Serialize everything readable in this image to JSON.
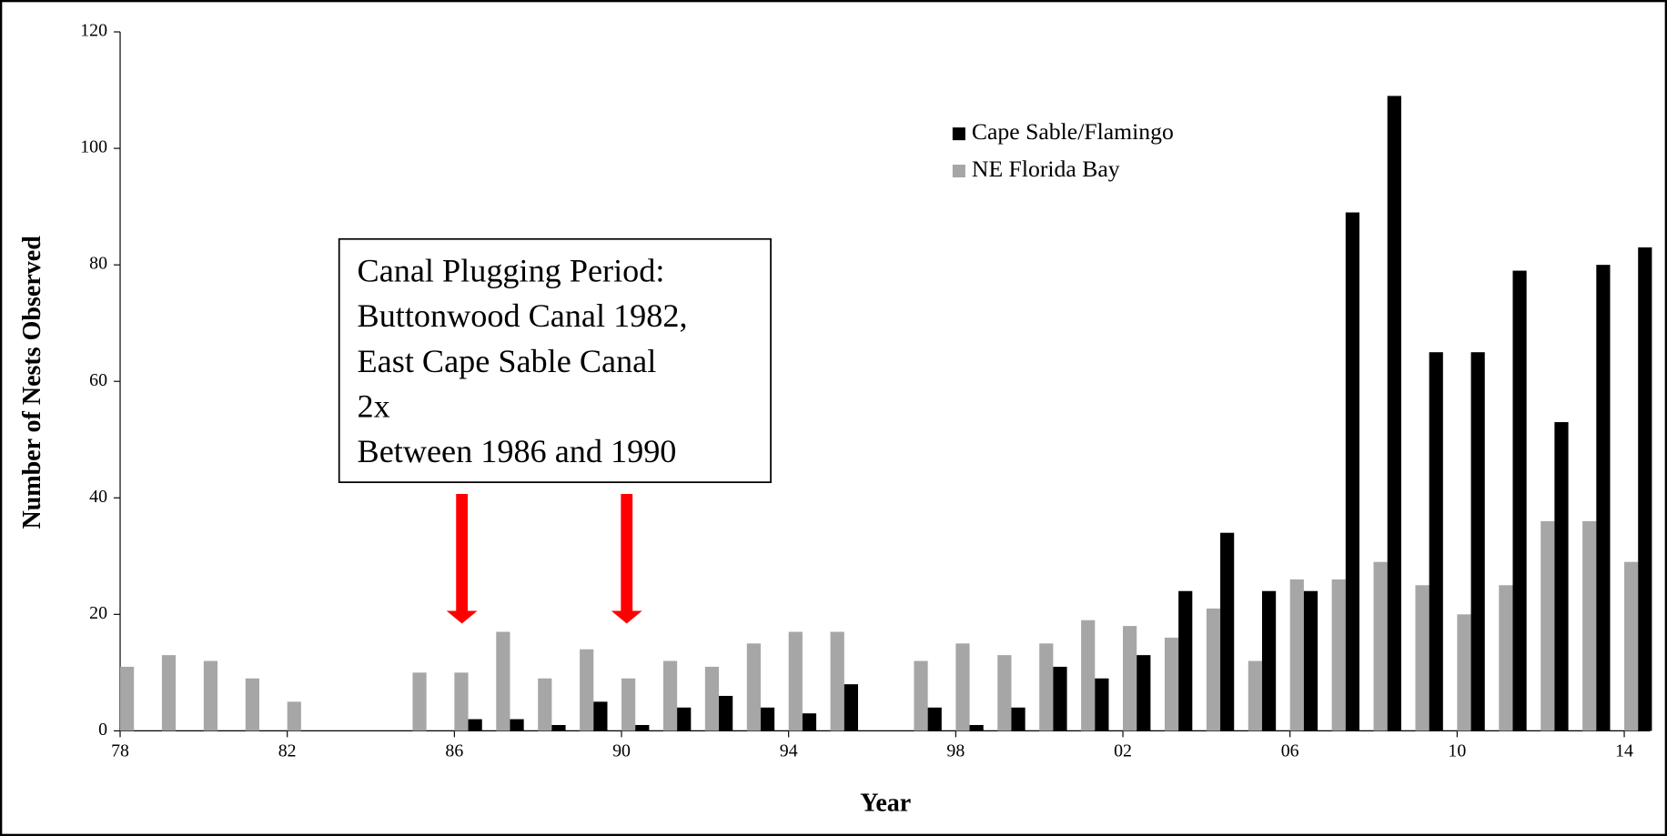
{
  "chart_data": {
    "type": "bar",
    "x_label": "Year",
    "y_label": "Number of Nests Observed",
    "categories": [
      "78",
      null,
      null,
      null,
      "82",
      null,
      null,
      null,
      "86",
      null,
      null,
      null,
      "90",
      null,
      null,
      null,
      "94",
      null,
      null,
      null,
      "98",
      null,
      null,
      null,
      "02",
      null,
      null,
      null,
      "06",
      null,
      null,
      null,
      "10",
      null,
      null,
      null,
      "14"
    ],
    "series": [
      {
        "name": "NE Florida Bay",
        "color": "#a6a6a6",
        "values": [
          11,
          13,
          12,
          9,
          5,
          0,
          0,
          10,
          10,
          17,
          9,
          14,
          9,
          12,
          11,
          15,
          17,
          17,
          0,
          12,
          15,
          13,
          15,
          19,
          18,
          16,
          21,
          12,
          26,
          26,
          29,
          25,
          20,
          25,
          36,
          36,
          29
        ]
      },
      {
        "name": "Cape Sable/Flamingo",
        "color": "#000000",
        "values": [
          0,
          0,
          0,
          0,
          0,
          0,
          0,
          0,
          2,
          2,
          1,
          5,
          1,
          4,
          6,
          4,
          3,
          8,
          0,
          4,
          1,
          4,
          11,
          9,
          13,
          24,
          34,
          24,
          24,
          89,
          109,
          65,
          65,
          79,
          53,
          80,
          83
        ]
      }
    ],
    "legend_order": [
      1,
      0
    ],
    "legend": "upper right",
    "ylim": [
      0,
      120
    ],
    "yticks": [
      0,
      20,
      40,
      60,
      80,
      100,
      120
    ],
    "annotation": [
      "Canal Plugging Period:",
      "Buttonwood Canal 1982,",
      "East Cape Sable Canal",
      "2x",
      "Between 1986 and 1990"
    ]
  }
}
